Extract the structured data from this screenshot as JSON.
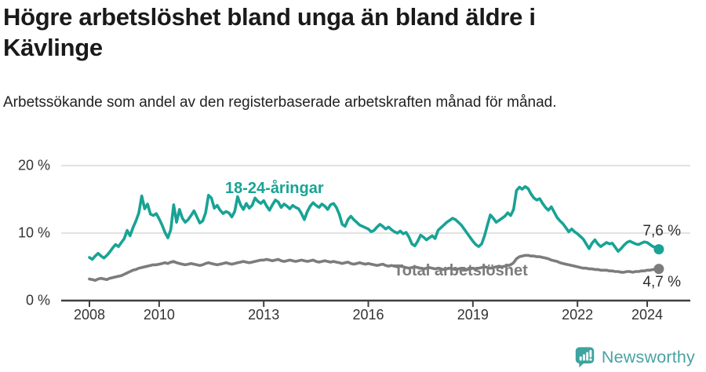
{
  "header": {
    "title": "Högre arbetslöshet bland unga än bland äldre i Kävlinge",
    "subtitle": "Arbetssökande som andel av den registerbaserade arbetskraften månad för månad."
  },
  "footer": {
    "brand": "Newsworthy",
    "logo_icon": "speech-bubble-bar-chart-icon"
  },
  "colors": {
    "youth_line": "#18a395",
    "total_line": "#7c7c7c",
    "gridline": "#e2e2e2",
    "axis": "#3f3f3f",
    "brand_teal": "#4aa2a2"
  },
  "chart_data": {
    "type": "line",
    "title": "Högre arbetslöshet bland unga än bland äldre i Kävlinge",
    "subtitle": "Arbetssökande som andel av den registerbaserade arbetskraften månad för månad.",
    "xlabel": "",
    "ylabel": "",
    "frequency": "monthly",
    "x_start": "2008-01",
    "x_end": "2024-05",
    "ylim": [
      0,
      21.5
    ],
    "grid": "horizontal",
    "legend_position": "inline-labels",
    "y_ticks": [
      {
        "value": 0,
        "label": "0 %"
      },
      {
        "value": 10,
        "label": "10 %"
      },
      {
        "value": 20,
        "label": "20 %"
      }
    ],
    "x_tick_years": [
      2008,
      2010,
      2013,
      2016,
      2019,
      2022,
      2024
    ],
    "x_tick_labels": [
      "2008",
      "2010",
      "2013",
      "2016",
      "2019",
      "2022",
      "2024"
    ],
    "series": [
      {
        "name": "18-24-åringar",
        "color": "#18a395",
        "end_label": "7,6 %",
        "end_value": 7.6,
        "values": [
          6.4,
          6.1,
          6.6,
          7.0,
          6.6,
          6.3,
          6.7,
          7.2,
          7.8,
          8.3,
          8.0,
          8.6,
          9.2,
          10.4,
          9.6,
          10.8,
          11.8,
          13.0,
          15.5,
          13.6,
          14.3,
          12.8,
          12.6,
          12.9,
          12.1,
          11.2,
          10.1,
          9.3,
          10.5,
          14.2,
          11.6,
          13.5,
          12.2,
          11.6,
          12.0,
          12.6,
          13.3,
          12.4,
          11.5,
          11.8,
          13.0,
          15.6,
          15.2,
          13.7,
          14.1,
          13.4,
          12.9,
          13.2,
          13.0,
          12.4,
          13.2,
          15.4,
          14.2,
          13.5,
          14.4,
          13.7,
          14.1,
          15.2,
          14.7,
          14.4,
          14.8,
          14.0,
          13.4,
          14.2,
          14.9,
          14.6,
          13.8,
          14.3,
          14.0,
          13.6,
          14.1,
          13.8,
          13.6,
          12.9,
          12.0,
          13.2,
          14.0,
          14.5,
          14.1,
          13.8,
          14.3,
          14.0,
          13.5,
          14.2,
          14.4,
          13.8,
          12.8,
          11.3,
          11.0,
          12.0,
          12.5,
          12.0,
          11.6,
          11.2,
          11.0,
          10.8,
          10.6,
          10.2,
          10.4,
          10.9,
          11.3,
          11.0,
          10.6,
          10.9,
          10.5,
          10.2,
          10.0,
          10.3,
          9.9,
          10.1,
          9.4,
          8.4,
          8.1,
          8.8,
          9.7,
          9.4,
          9.0,
          9.3,
          9.6,
          9.2,
          10.4,
          10.8,
          11.2,
          11.6,
          11.9,
          12.2,
          12.0,
          11.6,
          11.2,
          10.6,
          10.0,
          9.4,
          8.8,
          8.3,
          8.0,
          8.4,
          9.6,
          11.2,
          12.7,
          12.2,
          11.6,
          11.9,
          12.2,
          12.5,
          13.0,
          12.6,
          13.5,
          16.3,
          16.8,
          16.5,
          16.9,
          16.6,
          15.8,
          15.2,
          14.9,
          15.1,
          14.4,
          13.8,
          13.4,
          13.9,
          13.1,
          12.3,
          11.8,
          11.4,
          10.8,
          10.2,
          10.6,
          10.2,
          9.9,
          9.5,
          9.1,
          8.4,
          7.7,
          8.5,
          9.0,
          8.4,
          8.0,
          8.3,
          8.6,
          8.4,
          8.5,
          7.9,
          7.3,
          7.7,
          8.2,
          8.6,
          8.8,
          8.6,
          8.4,
          8.3,
          8.5,
          8.7,
          8.6,
          8.3,
          8.0,
          7.9,
          7.6
        ]
      },
      {
        "name": "Total arbetslöshet",
        "color": "#7c7c7c",
        "end_label": "4,7 %",
        "end_value": 4.7,
        "values": [
          3.2,
          3.1,
          3.0,
          3.2,
          3.3,
          3.2,
          3.1,
          3.3,
          3.4,
          3.5,
          3.6,
          3.7,
          3.9,
          4.1,
          4.3,
          4.5,
          4.6,
          4.8,
          4.9,
          5.0,
          5.1,
          5.2,
          5.3,
          5.3,
          5.4,
          5.5,
          5.6,
          5.5,
          5.7,
          5.8,
          5.6,
          5.5,
          5.4,
          5.3,
          5.4,
          5.5,
          5.4,
          5.3,
          5.2,
          5.3,
          5.5,
          5.6,
          5.5,
          5.4,
          5.3,
          5.4,
          5.5,
          5.6,
          5.5,
          5.4,
          5.5,
          5.6,
          5.7,
          5.8,
          5.7,
          5.6,
          5.7,
          5.8,
          5.9,
          6.0,
          6.0,
          6.1,
          6.0,
          5.9,
          6.0,
          6.1,
          5.9,
          5.8,
          5.9,
          6.0,
          5.9,
          5.8,
          5.9,
          6.0,
          5.9,
          5.8,
          5.9,
          6.0,
          5.8,
          5.7,
          5.8,
          5.9,
          5.8,
          5.7,
          5.8,
          5.7,
          5.6,
          5.5,
          5.6,
          5.7,
          5.5,
          5.4,
          5.5,
          5.6,
          5.5,
          5.4,
          5.5,
          5.4,
          5.3,
          5.2,
          5.3,
          5.4,
          5.2,
          5.1,
          5.2,
          5.1,
          5.0,
          5.1,
          5.0,
          4.9,
          4.8,
          4.9,
          5.0,
          4.9,
          4.8,
          4.7,
          4.8,
          4.9,
          4.8,
          4.7,
          4.8,
          4.7,
          4.6,
          4.7,
          4.8,
          4.7,
          4.6,
          4.7,
          4.8,
          4.7,
          4.6,
          4.7,
          4.8,
          4.7,
          4.8,
          4.9,
          5.0,
          4.9,
          4.8,
          4.9,
          5.0,
          5.1,
          5.0,
          5.1,
          5.2,
          5.3,
          5.6,
          6.2,
          6.5,
          6.6,
          6.7,
          6.7,
          6.6,
          6.6,
          6.5,
          6.5,
          6.4,
          6.3,
          6.2,
          6.0,
          5.9,
          5.8,
          5.6,
          5.5,
          5.4,
          5.3,
          5.2,
          5.1,
          5.0,
          4.9,
          4.8,
          4.8,
          4.7,
          4.7,
          4.6,
          4.6,
          4.5,
          4.5,
          4.5,
          4.4,
          4.4,
          4.3,
          4.3,
          4.2,
          4.2,
          4.3,
          4.3,
          4.2,
          4.3,
          4.3,
          4.4,
          4.4,
          4.5,
          4.5,
          4.6,
          4.6,
          4.7
        ]
      }
    ]
  }
}
